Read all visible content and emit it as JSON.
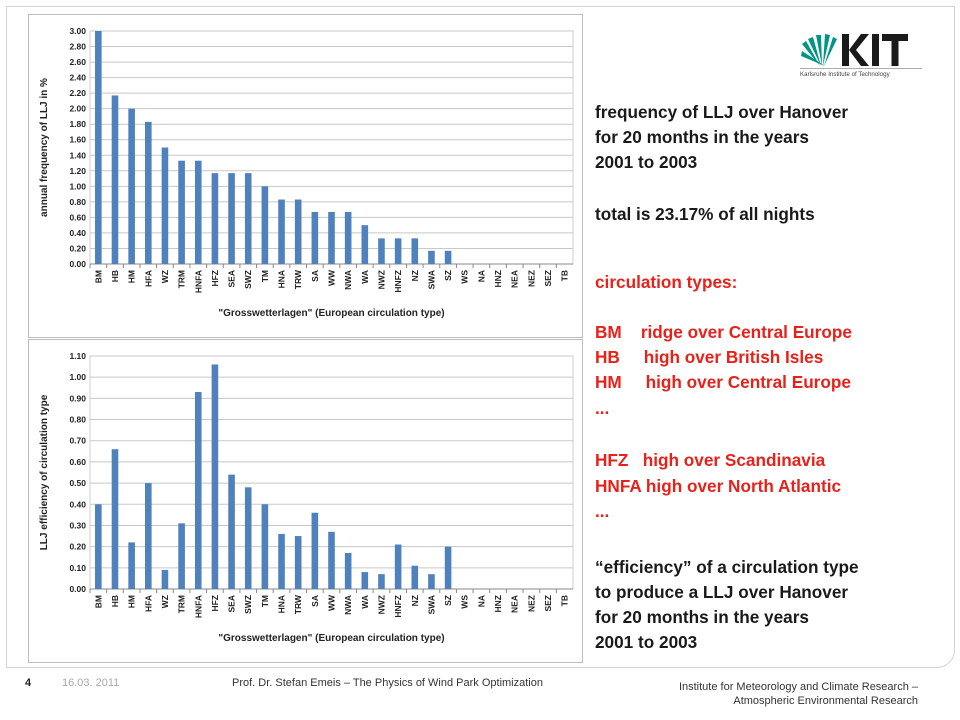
{
  "chart_data": [
    {
      "type": "bar",
      "ylabel": "annual frequency of LLJ in %",
      "xlabel": "\"Grosswetterlagen\" (European circulation type)",
      "ylim": [
        0,
        3.0
      ],
      "yticks": [
        "0.00",
        "0.20",
        "0.40",
        "0.60",
        "0.80",
        "1.00",
        "1.20",
        "1.40",
        "1.60",
        "1.80",
        "2.00",
        "2.20",
        "2.40",
        "2.60",
        "2.80",
        "3.00"
      ],
      "grid": true,
      "color": "#4f81bd",
      "categories": [
        "BM",
        "HB",
        "HM",
        "HFA",
        "WZ",
        "TRM",
        "HNFA",
        "HFZ",
        "SEA",
        "SWZ",
        "TM",
        "HNA",
        "TRW",
        "SA",
        "WW",
        "NWA",
        "WA",
        "NWZ",
        "HNFZ",
        "NZ",
        "SWA",
        "SZ",
        "WS",
        "NA",
        "HNZ",
        "NEA",
        "NEZ",
        "SEZ",
        "TB"
      ],
      "values": [
        3.0,
        2.17,
        2.0,
        1.83,
        1.5,
        1.33,
        1.33,
        1.17,
        1.17,
        1.17,
        1.0,
        0.83,
        0.83,
        0.67,
        0.67,
        0.67,
        0.5,
        0.33,
        0.33,
        0.33,
        0.17,
        0.17,
        0,
        0,
        0,
        0,
        0,
        0,
        0
      ]
    },
    {
      "type": "bar",
      "ylabel": "LLJ efficiency of circulation type",
      "xlabel": "\"Grosswetterlagen\" (European circulation type)",
      "ylim": [
        0,
        1.1
      ],
      "yticks": [
        "0.00",
        "0.10",
        "0.20",
        "0.30",
        "0.40",
        "0.50",
        "0.60",
        "0.70",
        "0.80",
        "0.90",
        "1.00",
        "1.10"
      ],
      "grid": true,
      "color": "#4f81bd",
      "categories": [
        "BM",
        "HB",
        "HM",
        "HFA",
        "WZ",
        "TRM",
        "HNFA",
        "HFZ",
        "SEA",
        "SWZ",
        "TM",
        "HNA",
        "TRW",
        "SA",
        "WW",
        "NWA",
        "WA",
        "NWZ",
        "HNFZ",
        "NZ",
        "SWA",
        "SZ",
        "WS",
        "NA",
        "HNZ",
        "NEA",
        "NEZ",
        "SEZ",
        "TB"
      ],
      "values": [
        0.4,
        0.66,
        0.22,
        0.5,
        0.09,
        0.31,
        0.93,
        1.06,
        0.54,
        0.48,
        0.4,
        0.26,
        0.25,
        0.36,
        0.27,
        0.17,
        0.08,
        0.07,
        0.21,
        0.11,
        0.07,
        0.2,
        0,
        0,
        0,
        0,
        0,
        0,
        0
      ]
    }
  ],
  "logo": {
    "text": "KIT",
    "subtitle": "Karlsruhe Institute of Technology",
    "color": "#009682"
  },
  "text_block": {
    "freq1": "frequency of LLJ over Hanover",
    "freq2": "for 20 months in the years",
    "freq3": "2001 to 2003",
    "total": "total is 23.17% of all nights",
    "circ_title": "circulation types:",
    "bm": "BM    ridge over Central Europe",
    "hb": "HB     high over British Isles",
    "hm": "HM     high over Central Europe",
    "dots1": "...",
    "hfz": "HFZ   high over Scandinavia",
    "hnfa": "HNFA high over North Atlantic",
    "dots2": "...",
    "eff1": "“efficiency” of a circulation type",
    "eff2": "to produce a LLJ over Hanover",
    "eff3": "for 20 months in the years",
    "eff4": "2001 to 2003"
  },
  "footer": {
    "page": "4",
    "date": "16.03. 2011",
    "author": "Prof. Dr. Stefan Emeis – The Physics of Wind Park Optimization",
    "inst1": "Institute for Meteorology and Climate Research –",
    "inst2": "Atmospheric Environmental Research"
  }
}
